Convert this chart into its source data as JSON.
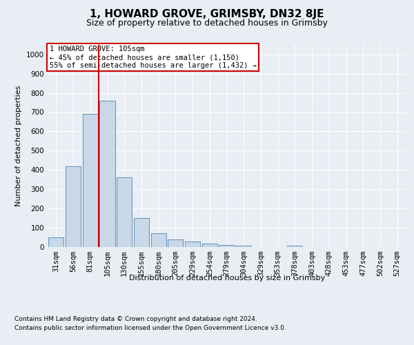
{
  "title": "1, HOWARD GROVE, GRIMSBY, DN32 8JE",
  "subtitle": "Size of property relative to detached houses in Grimsby",
  "xlabel": "Distribution of detached houses by size in Grimsby",
  "ylabel": "Number of detached properties",
  "footer_line1": "Contains HM Land Registry data © Crown copyright and database right 2024.",
  "footer_line2": "Contains public sector information licensed under the Open Government Licence v3.0.",
  "annotation_title": "1 HOWARD GROVE: 105sqm",
  "annotation_line2": "← 45% of detached houses are smaller (1,150)",
  "annotation_line3": "55% of semi-detached houses are larger (1,432) →",
  "bar_labels": [
    "31sqm",
    "56sqm",
    "81sqm",
    "105sqm",
    "130sqm",
    "155sqm",
    "180sqm",
    "205sqm",
    "229sqm",
    "254sqm",
    "279sqm",
    "304sqm",
    "329sqm",
    "353sqm",
    "378sqm",
    "403sqm",
    "428sqm",
    "453sqm",
    "477sqm",
    "502sqm",
    "527sqm"
  ],
  "bar_values": [
    47,
    420,
    690,
    760,
    360,
    150,
    70,
    38,
    27,
    17,
    10,
    5,
    0,
    0,
    7,
    0,
    0,
    0,
    0,
    0,
    0
  ],
  "bar_color": "#c8d8e8",
  "bar_edge_color": "#6090b8",
  "highlight_bar_index": 3,
  "highlight_line_color": "#cc0000",
  "ylim": [
    0,
    1050
  ],
  "yticks": [
    0,
    100,
    200,
    300,
    400,
    500,
    600,
    700,
    800,
    900,
    1000
  ],
  "background_color": "#e8eef4",
  "plot_bg_color": "#e8eef4",
  "grid_color": "#ffffff",
  "title_fontsize": 11,
  "subtitle_fontsize": 9,
  "axis_label_fontsize": 8,
  "tick_fontsize": 7.5,
  "annotation_fontsize": 7.5,
  "footer_fontsize": 6.5,
  "annotation_box_color": "#ffffff",
  "annotation_border_color": "#cc0000"
}
